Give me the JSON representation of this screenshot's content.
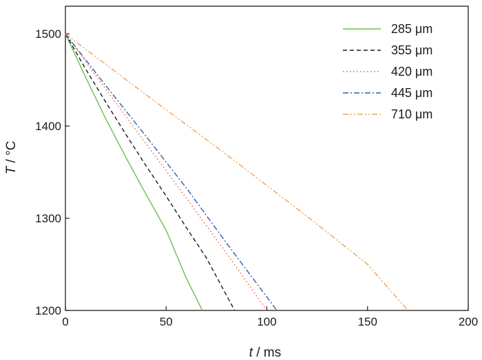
{
  "chart_data": {
    "type": "line",
    "title": "",
    "xlabel_var": "t",
    "xlabel_unit": " / ms",
    "ylabel_var": "T",
    "ylabel_unit": " / °C",
    "xlim": [
      0,
      200
    ],
    "ylim": [
      1200,
      1530
    ],
    "xticks": [
      0,
      50,
      100,
      150,
      200
    ],
    "yticks": [
      1200,
      1300,
      1400,
      1500
    ],
    "xtick_labels": [
      "0",
      "50",
      "100",
      "150",
      "200"
    ],
    "ytick_labels": [
      "1200",
      "1300",
      "1400",
      "1500"
    ],
    "grid": false,
    "legend_position": "top-right",
    "series": [
      {
        "name": "285 μm",
        "color": "#6abf4b",
        "dash": "solid",
        "x": [
          0,
          10,
          20,
          30,
          40,
          50,
          60,
          68
        ],
        "y": [
          1500,
          1453,
          1408,
          1366,
          1326,
          1287,
          1235,
          1200
        ]
      },
      {
        "name": "355 μm",
        "color": "#1a1a1a",
        "dash": "dash",
        "x": [
          0,
          10,
          20,
          30,
          40,
          50,
          60,
          70,
          84
        ],
        "y": [
          1500,
          1462,
          1426,
          1391,
          1357,
          1324,
          1290,
          1257,
          1200
        ]
      },
      {
        "name": "420 μm",
        "color": "#e8643c",
        "dash": "dot",
        "x": [
          0,
          20,
          40,
          60,
          80,
          100
        ],
        "y": [
          1500,
          1440,
          1381,
          1322,
          1262,
          1200
        ]
      },
      {
        "name": "445 μm",
        "color": "#2e5fa8",
        "dash": "dashdot",
        "x": [
          0,
          20,
          40,
          60,
          80,
          105
        ],
        "y": [
          1500,
          1444,
          1389,
          1333,
          1273,
          1200
        ]
      },
      {
        "name": "710 μm",
        "color": "#f0a24e",
        "dash": "dashdotdot",
        "x": [
          0,
          40,
          80,
          120,
          150,
          170
        ],
        "y": [
          1500,
          1434,
          1369,
          1302,
          1250,
          1200
        ]
      }
    ]
  }
}
